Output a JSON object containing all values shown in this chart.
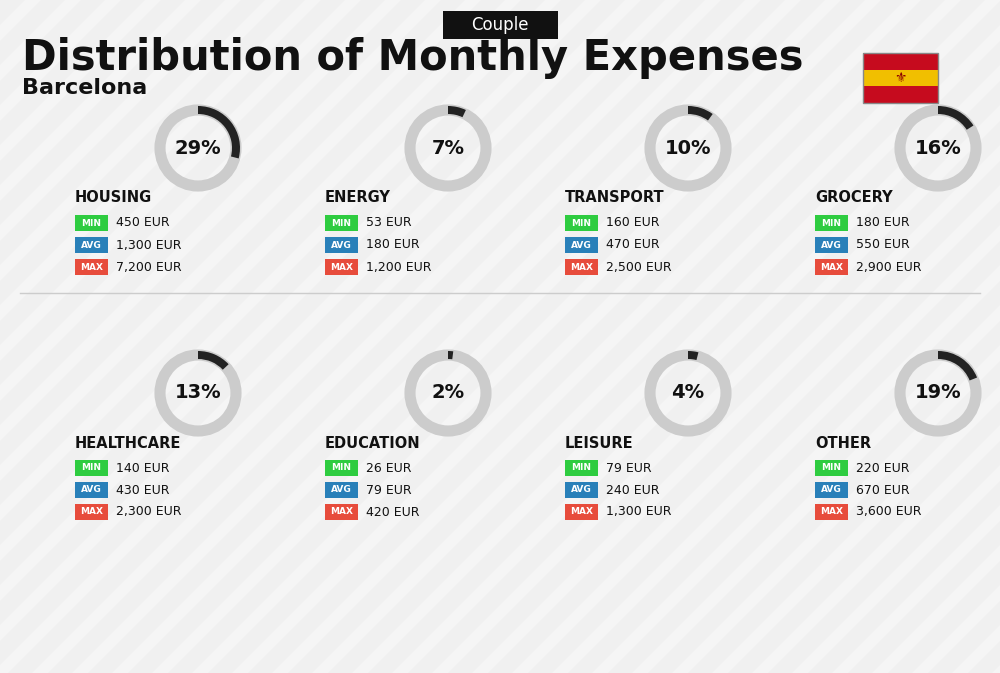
{
  "title": "Distribution of Monthly Expenses",
  "subtitle": "Barcelona",
  "label_top": "Couple",
  "bg_color": "#f0f0f0",
  "categories": [
    {
      "name": "HOUSING",
      "pct": 29,
      "min_val": "450 EUR",
      "avg_val": "1,300 EUR",
      "max_val": "7,200 EUR",
      "row": 0,
      "col": 0
    },
    {
      "name": "ENERGY",
      "pct": 7,
      "min_val": "53 EUR",
      "avg_val": "180 EUR",
      "max_val": "1,200 EUR",
      "row": 0,
      "col": 1
    },
    {
      "name": "TRANSPORT",
      "pct": 10,
      "min_val": "160 EUR",
      "avg_val": "470 EUR",
      "max_val": "2,500 EUR",
      "row": 0,
      "col": 2
    },
    {
      "name": "GROCERY",
      "pct": 16,
      "min_val": "180 EUR",
      "avg_val": "550 EUR",
      "max_val": "2,900 EUR",
      "row": 0,
      "col": 3
    },
    {
      "name": "HEALTHCARE",
      "pct": 13,
      "min_val": "140 EUR",
      "avg_val": "430 EUR",
      "max_val": "2,300 EUR",
      "row": 1,
      "col": 0
    },
    {
      "name": "EDUCATION",
      "pct": 2,
      "min_val": "26 EUR",
      "avg_val": "79 EUR",
      "max_val": "420 EUR",
      "row": 1,
      "col": 1
    },
    {
      "name": "LEISURE",
      "pct": 4,
      "min_val": "79 EUR",
      "avg_val": "240 EUR",
      "max_val": "1,300 EUR",
      "row": 1,
      "col": 2
    },
    {
      "name": "OTHER",
      "pct": 19,
      "min_val": "220 EUR",
      "avg_val": "670 EUR",
      "max_val": "3,600 EUR",
      "row": 1,
      "col": 3
    }
  ],
  "color_min": "#2ecc40",
  "color_avg": "#2980b9",
  "color_max": "#e74c3c",
  "color_dark": "#111111",
  "color_arc_filled": "#222222",
  "color_arc_empty": "#cccccc",
  "label_min": "MIN",
  "label_avg": "AVG",
  "label_max": "MAX"
}
